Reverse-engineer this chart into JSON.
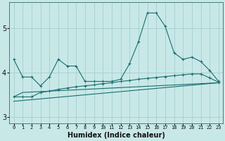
{
  "xlabel": "Humidex (Indice chaleur)",
  "x_values": [
    0,
    1,
    2,
    3,
    4,
    5,
    6,
    7,
    8,
    9,
    10,
    11,
    12,
    13,
    14,
    15,
    16,
    17,
    18,
    19,
    20,
    21,
    22,
    23
  ],
  "line1": [
    4.3,
    3.9,
    3.9,
    3.7,
    3.9,
    4.3,
    4.15,
    4.15,
    3.8,
    3.8,
    3.8,
    3.8,
    3.85,
    4.2,
    4.7,
    5.35,
    5.35,
    5.05,
    4.45,
    4.3,
    4.35,
    4.25,
    4.05,
    3.8
  ],
  "line2": [
    3.45,
    3.45,
    3.45,
    3.55,
    3.58,
    3.62,
    3.65,
    3.68,
    3.7,
    3.72,
    3.75,
    3.77,
    3.8,
    3.82,
    3.85,
    3.87,
    3.89,
    3.91,
    3.93,
    3.95,
    3.97,
    3.97,
    3.88,
    3.78
  ],
  "line3": {
    "x": [
      0,
      23
    ],
    "y": [
      3.35,
      3.77
    ]
  },
  "line4": {
    "x": [
      0,
      1,
      23
    ],
    "y": [
      3.45,
      3.55,
      3.77
    ]
  },
  "bg_color": "#c8e8e8",
  "line_color": "#1a6e6e",
  "grid_color": "#a0c8c8",
  "ylim": [
    2.85,
    5.6
  ],
  "yticks": [
    3,
    4,
    5
  ],
  "xlim": [
    -0.5,
    23.5
  ]
}
